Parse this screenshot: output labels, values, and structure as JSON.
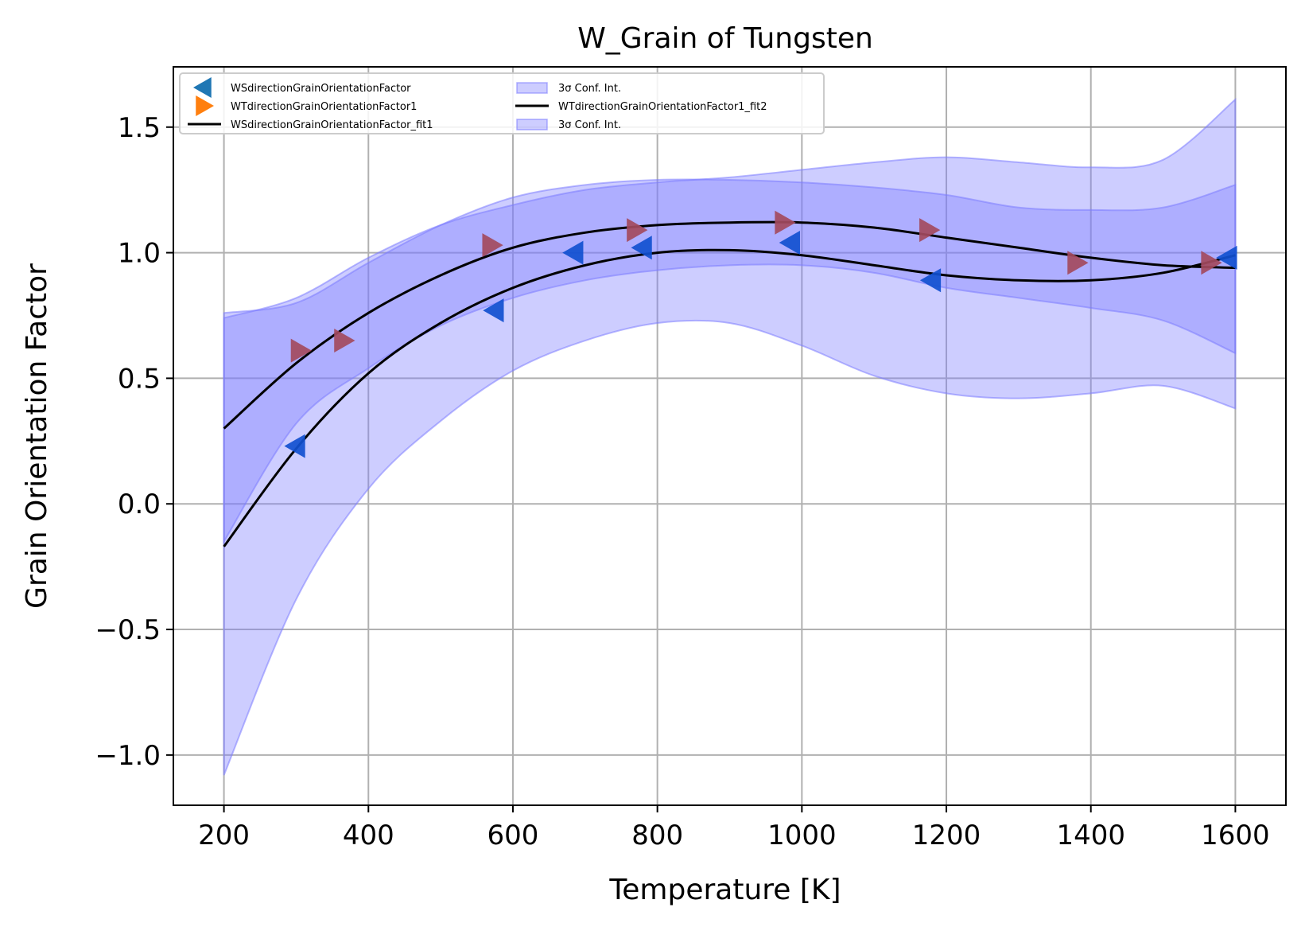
{
  "chart_data": {
    "type": "line",
    "title": "W_Grain of Tungsten",
    "xlabel": "Temperature [K]",
    "ylabel": "Grain Orientation Factor",
    "xlim": [
      130,
      1670
    ],
    "ylim": [
      -1.2,
      1.74
    ],
    "xticks": [
      200,
      400,
      600,
      800,
      1000,
      1200,
      1400,
      1600
    ],
    "yticks": [
      -1.0,
      -0.5,
      0.0,
      0.5,
      1.0,
      1.5
    ],
    "xtick_labels": [
      "200",
      "400",
      "600",
      "800",
      "1000",
      "1200",
      "1400",
      "1600"
    ],
    "ytick_labels": [
      "−1.0",
      "−0.5",
      "0.0",
      "0.5",
      "1.0",
      "1.5"
    ],
    "grid": true,
    "legend_position": "top-left",
    "legend": [
      {
        "label": "WSdirectionGrainOrientationFactor",
        "kind": "marker-left",
        "color": "#1f77b4"
      },
      {
        "label": "WTdirectionGrainOrientationFactor1",
        "kind": "marker-right",
        "color": "#ff7f0e"
      },
      {
        "label": "WSdirectionGrainOrientationFactor_fit1",
        "kind": "line",
        "color": "#000000"
      },
      {
        "label": "3σ Conf. Int.",
        "kind": "band",
        "color": "#7b7bff"
      },
      {
        "label": "WTdirectionGrainOrientationFactor1_fit2",
        "kind": "line",
        "color": "#000000"
      },
      {
        "label": "3σ Conf. Int.",
        "kind": "band",
        "color": "#7b7bff"
      }
    ],
    "series": [
      {
        "name": "WSdirectionGrainOrientationFactor",
        "kind": "scatter",
        "marker": "triangle-left",
        "color": "#1150d0",
        "x": [
          300,
          575,
          685,
          780,
          985,
          1180,
          1590
        ],
        "y": [
          0.23,
          0.77,
          1.0,
          1.02,
          1.04,
          0.89,
          0.98
        ]
      },
      {
        "name": "WTdirectionGrainOrientationFactor1",
        "kind": "scatter",
        "marker": "triangle-right",
        "color": "#a34a5e",
        "x": [
          305,
          570,
          365,
          770,
          975,
          1175,
          1380,
          1565
        ],
        "y": [
          0.61,
          1.03,
          0.65,
          1.09,
          1.12,
          1.09,
          0.96,
          0.96
        ]
      },
      {
        "name": "WSdirectionGrainOrientationFactor_fit1",
        "kind": "line",
        "color": "#000000",
        "x": [
          200,
          300,
          400,
          500,
          600,
          700,
          800,
          900,
          1000,
          1100,
          1200,
          1300,
          1400,
          1500,
          1600
        ],
        "y": [
          -0.17,
          0.22,
          0.52,
          0.72,
          0.86,
          0.95,
          1.0,
          1.01,
          0.99,
          0.95,
          0.91,
          0.89,
          0.89,
          0.92,
          0.99
        ]
      },
      {
        "name": "WSdirectionGrainOrientationFactor_fit1 3σ Conf. Int.",
        "kind": "band",
        "color": "#7b7bff",
        "x": [
          200,
          300,
          400,
          500,
          600,
          700,
          800,
          900,
          1000,
          1100,
          1200,
          1300,
          1400,
          1500,
          1600
        ],
        "lower": [
          -1.08,
          -0.38,
          0.06,
          0.33,
          0.53,
          0.65,
          0.72,
          0.72,
          0.63,
          0.51,
          0.44,
          0.42,
          0.44,
          0.47,
          0.38
        ],
        "upper": [
          0.74,
          0.82,
          0.98,
          1.11,
          1.19,
          1.25,
          1.28,
          1.3,
          1.33,
          1.36,
          1.38,
          1.36,
          1.34,
          1.37,
          1.61
        ]
      },
      {
        "name": "WTdirectionGrainOrientationFactor1_fit2",
        "kind": "line",
        "color": "#000000",
        "x": [
          200,
          300,
          400,
          500,
          600,
          700,
          800,
          900,
          1000,
          1100,
          1200,
          1300,
          1400,
          1500,
          1600
        ],
        "y": [
          0.3,
          0.56,
          0.76,
          0.91,
          1.02,
          1.08,
          1.11,
          1.12,
          1.12,
          1.1,
          1.06,
          1.02,
          0.98,
          0.95,
          0.94
        ]
      },
      {
        "name": "WTdirectionGrainOrientationFactor1_fit2 3σ Conf. Int.",
        "kind": "band",
        "color": "#7b7bff",
        "x": [
          200,
          300,
          400,
          500,
          600,
          700,
          800,
          900,
          1000,
          1100,
          1200,
          1300,
          1400,
          1500,
          1600
        ],
        "lower": [
          -0.15,
          0.32,
          0.54,
          0.71,
          0.82,
          0.89,
          0.93,
          0.95,
          0.95,
          0.92,
          0.86,
          0.82,
          0.78,
          0.73,
          0.6
        ],
        "upper": [
          0.76,
          0.8,
          0.96,
          1.11,
          1.22,
          1.27,
          1.29,
          1.29,
          1.28,
          1.26,
          1.23,
          1.18,
          1.17,
          1.18,
          1.27
        ]
      }
    ]
  }
}
